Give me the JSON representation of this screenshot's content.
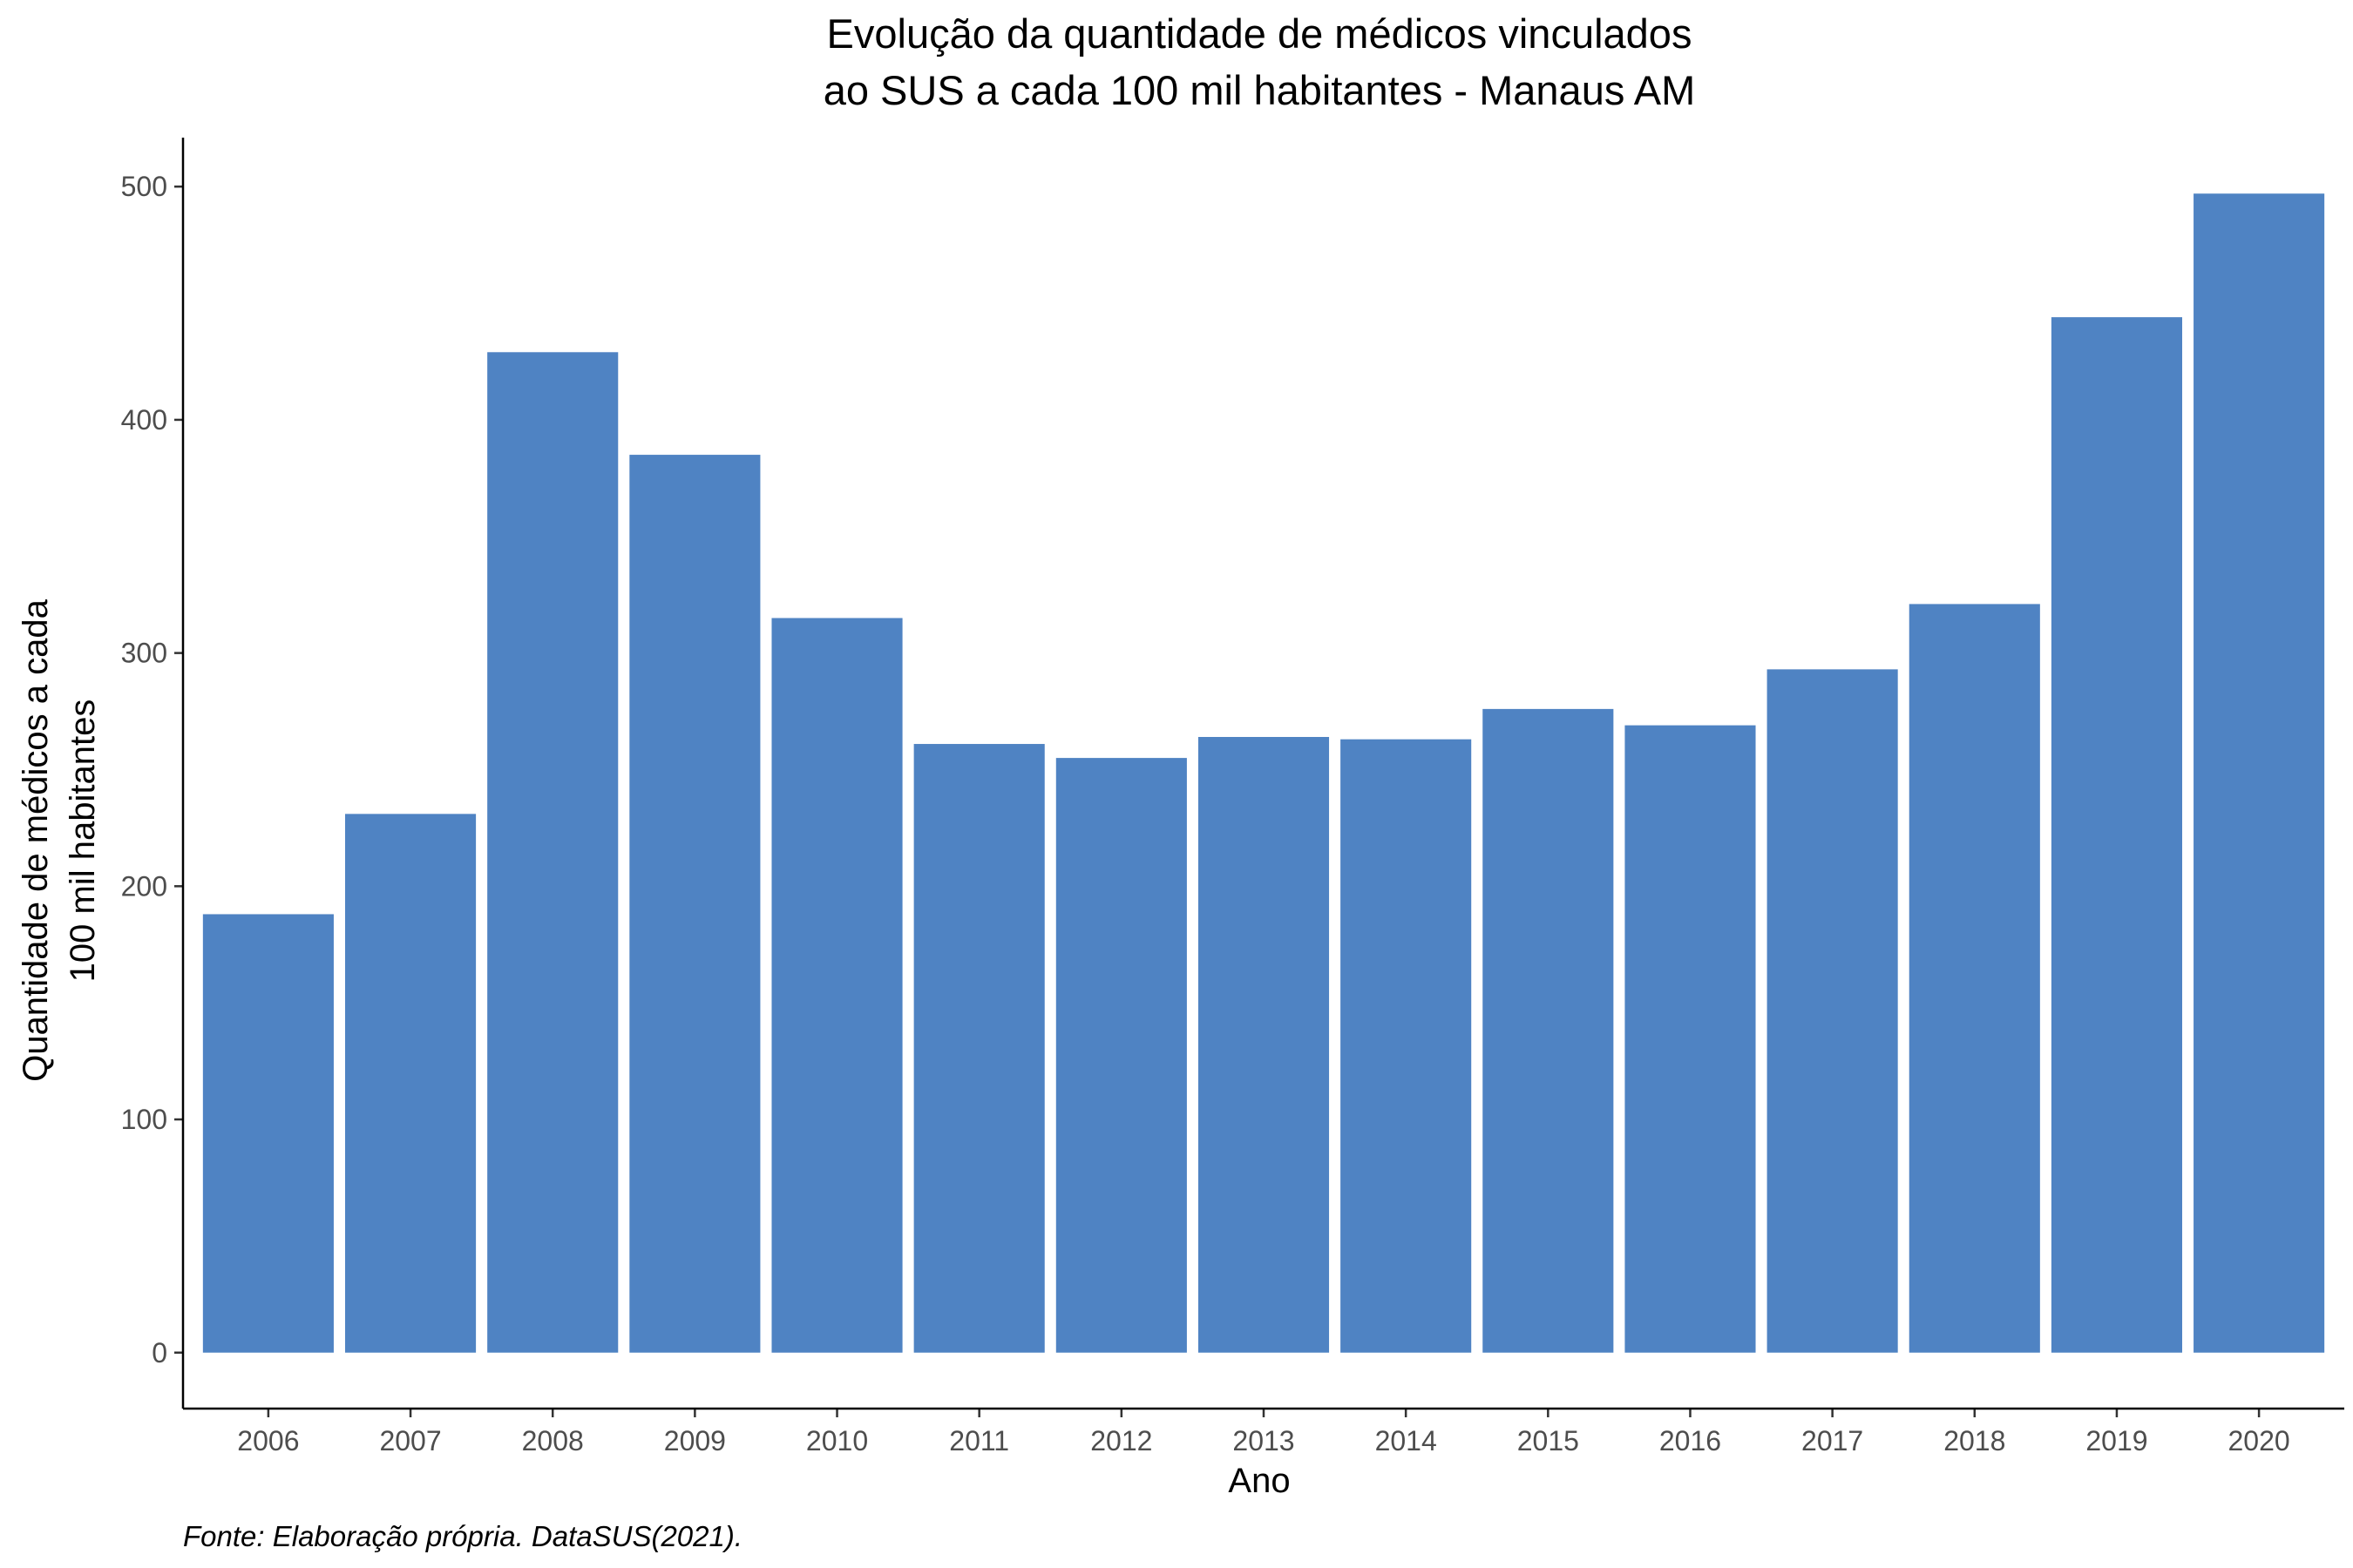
{
  "chart_data": {
    "type": "bar",
    "title": "Evolução da quantidade de médicos vinculados",
    "subtitle": "ao SUS a cada 100 mil habitantes - Manaus AM",
    "xlabel": "Ano",
    "ylabel": "Quantidade de médicos a cada",
    "ylabel_line2": "100 mil habitantes",
    "caption": "Fonte: Elaboração própria. DataSUS(2021).",
    "categories": [
      "2006",
      "2007",
      "2008",
      "2009",
      "2010",
      "2011",
      "2012",
      "2013",
      "2014",
      "2015",
      "2016",
      "2017",
      "2018",
      "2019",
      "2020"
    ],
    "values": [
      188,
      231,
      429,
      385,
      315,
      261,
      255,
      264,
      263,
      276,
      269,
      293,
      321,
      444,
      497
    ],
    "ylim": [
      -24,
      521
    ],
    "yticks": [
      0,
      100,
      200,
      300,
      400,
      500
    ],
    "ytick_labels": [
      "0",
      "100",
      "200",
      "300",
      "400",
      "500"
    ],
    "grid": false,
    "legend": "none",
    "bar_color": "#4f83c3"
  }
}
